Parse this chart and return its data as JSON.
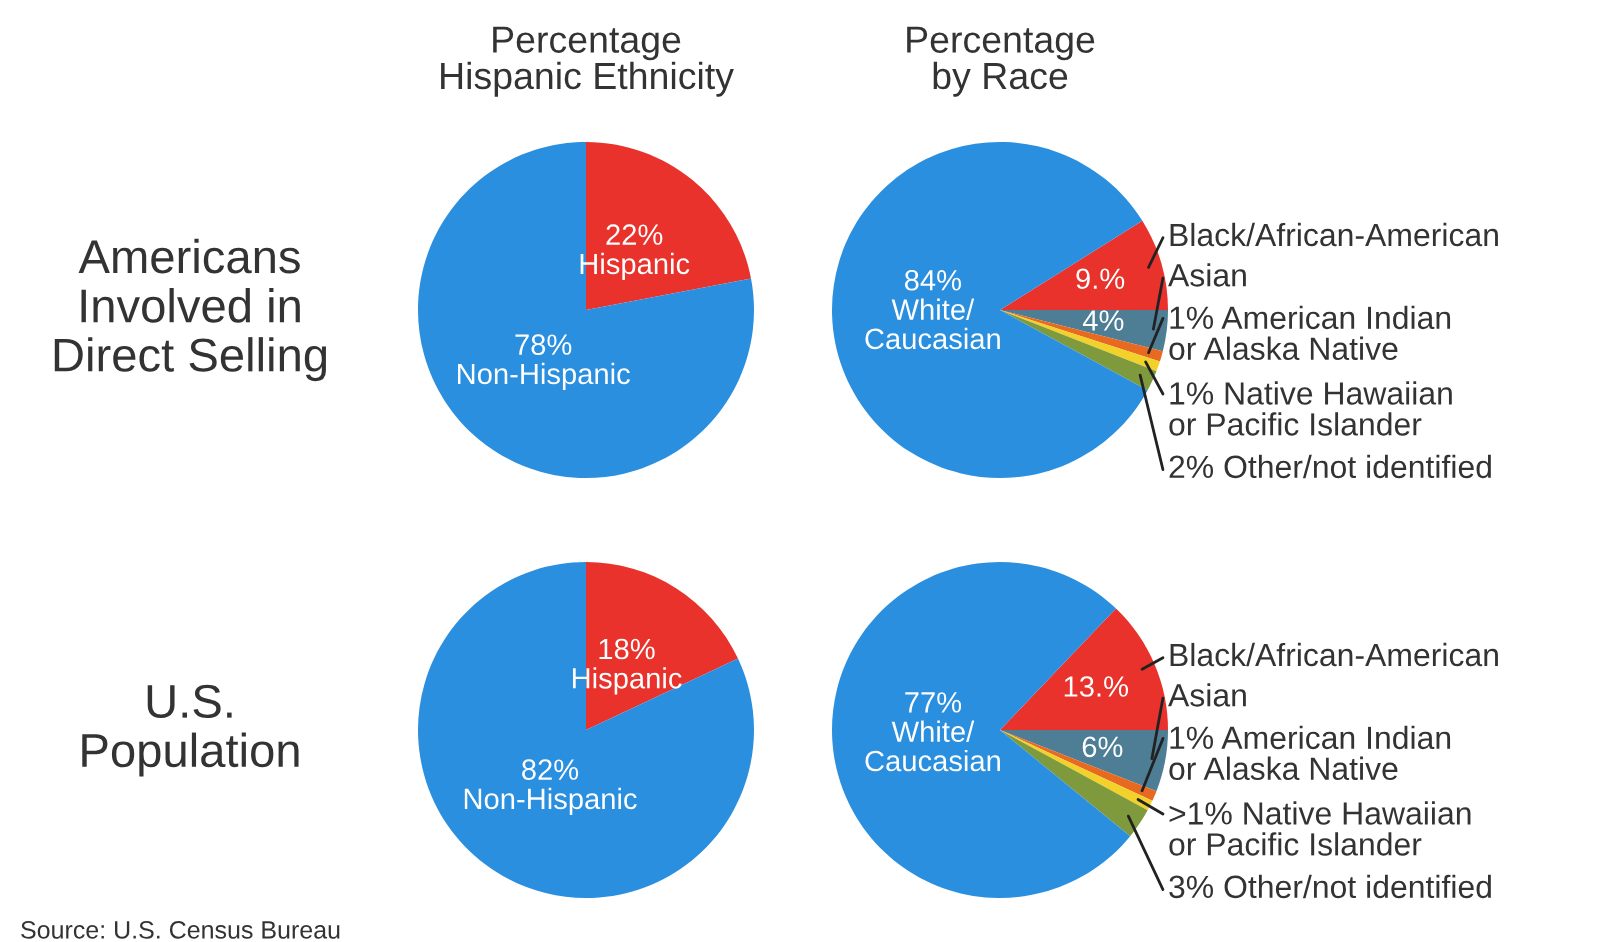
{
  "chart_data": [
    {
      "type": "pie",
      "title": "Percentage\nHispanic Ethnicity",
      "categories": [
        null,
        null
      ],
      "values": [
        22,
        78
      ],
      "colors": [
        "#e8322b",
        "#2b8fe0"
      ],
      "value_labels": [
        "22%\nHispanic",
        "78%\nNon-Hispanic"
      ],
      "annotations": [
        "Americans\nInvolved in\nDirect Selling"
      ]
    },
    {
      "type": "pie",
      "title": "Percentage\nby Race",
      "categories": [
        "Black/African-American",
        "Asian",
        "1% American Indian\nor Alaska Native",
        "1% Native Hawaiian\nor Pacific Islander",
        "2% Other/not identified",
        null
      ],
      "values": [
        9,
        4,
        1,
        1,
        2,
        84
      ],
      "colors": [
        "#e8322b",
        "#4d7e95",
        "#e86a20",
        "#f2d22a",
        "#7f9a3c",
        "#2b8fe0"
      ],
      "value_labels": [
        "9.%",
        "4%",
        null,
        null,
        null,
        "84%\nWhite/\nCaucasian"
      ]
    },
    {
      "type": "pie",
      "categories": [
        null,
        null
      ],
      "values": [
        18,
        82
      ],
      "colors": [
        "#e8322b",
        "#2b8fe0"
      ],
      "value_labels": [
        "18%\nHispanic",
        "82%\nNon-Hispanic"
      ],
      "annotations": [
        "U.S.\nPopulation",
        "Source: U.S. Census Bureau"
      ]
    },
    {
      "type": "pie",
      "categories": [
        "Black/African-American",
        "Asian",
        "1% American Indian\nor Alaska Native",
        ">1% Native Hawaiian\nor Pacific Islander",
        "3% Other/not identified",
        null
      ],
      "values": [
        13,
        6,
        1,
        1,
        3,
        77
      ],
      "colors": [
        "#e8322b",
        "#4d7e95",
        "#e86a20",
        "#f2d22a",
        "#7f9a3c",
        "#2b8fe0"
      ],
      "value_labels": [
        "13.%",
        "6%",
        null,
        null,
        null,
        "77%\nWhite/\nCaucasian"
      ]
    }
  ]
}
